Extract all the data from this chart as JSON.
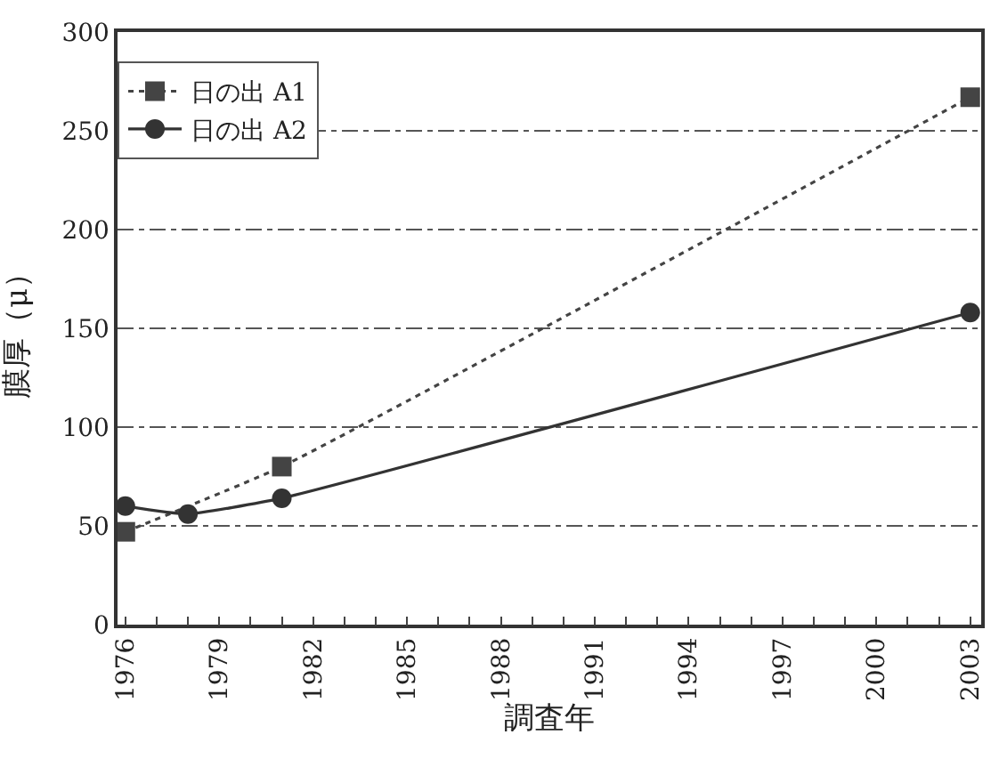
{
  "chart_data": {
    "type": "line",
    "xlabel": "調査年",
    "ylabel": "膜厚（μ）",
    "xlim": [
      1975.75,
      2003.35
    ],
    "ylim": [
      0,
      300
    ],
    "xticks": [
      1976,
      {
        "value": 1977,
        "label": null
      },
      {
        "value": 1978,
        "label": null
      },
      1979,
      {
        "value": 1980,
        "label": null
      },
      {
        "value": 1981,
        "label": null
      },
      1982,
      {
        "value": 1983,
        "label": null
      },
      {
        "value": 1984,
        "label": null
      },
      1985,
      {
        "value": 1986,
        "label": null
      },
      {
        "value": 1987,
        "label": null
      },
      1988,
      {
        "value": 1989,
        "label": null
      },
      {
        "value": 1990,
        "label": null
      },
      1991,
      {
        "value": 1992,
        "label": null
      },
      {
        "value": 1993,
        "label": null
      },
      1994,
      {
        "value": 1995,
        "label": null
      },
      {
        "value": 1996,
        "label": null
      },
      1997,
      {
        "value": 1998,
        "label": null
      },
      {
        "value": 1999,
        "label": null
      },
      2000,
      {
        "value": 2001,
        "label": null
      },
      {
        "value": 2002,
        "label": null
      },
      2003
    ],
    "yticks": [
      0,
      50,
      100,
      150,
      200,
      250,
      300
    ],
    "grid": "y",
    "legend": "top left",
    "series": [
      {
        "name": "日の出 A1",
        "color": "#444444",
        "x": [
          1976,
          1981,
          2003
        ],
        "values": [
          47,
          80,
          267
        ],
        "marker": "square",
        "line_style": "dotted"
      },
      {
        "name": "日の出 A2",
        "color": "#333333",
        "x": [
          1976,
          1978,
          1981,
          2003
        ],
        "values": [
          60,
          56,
          64,
          158
        ],
        "marker": "circle",
        "line_style": "solid"
      }
    ]
  }
}
